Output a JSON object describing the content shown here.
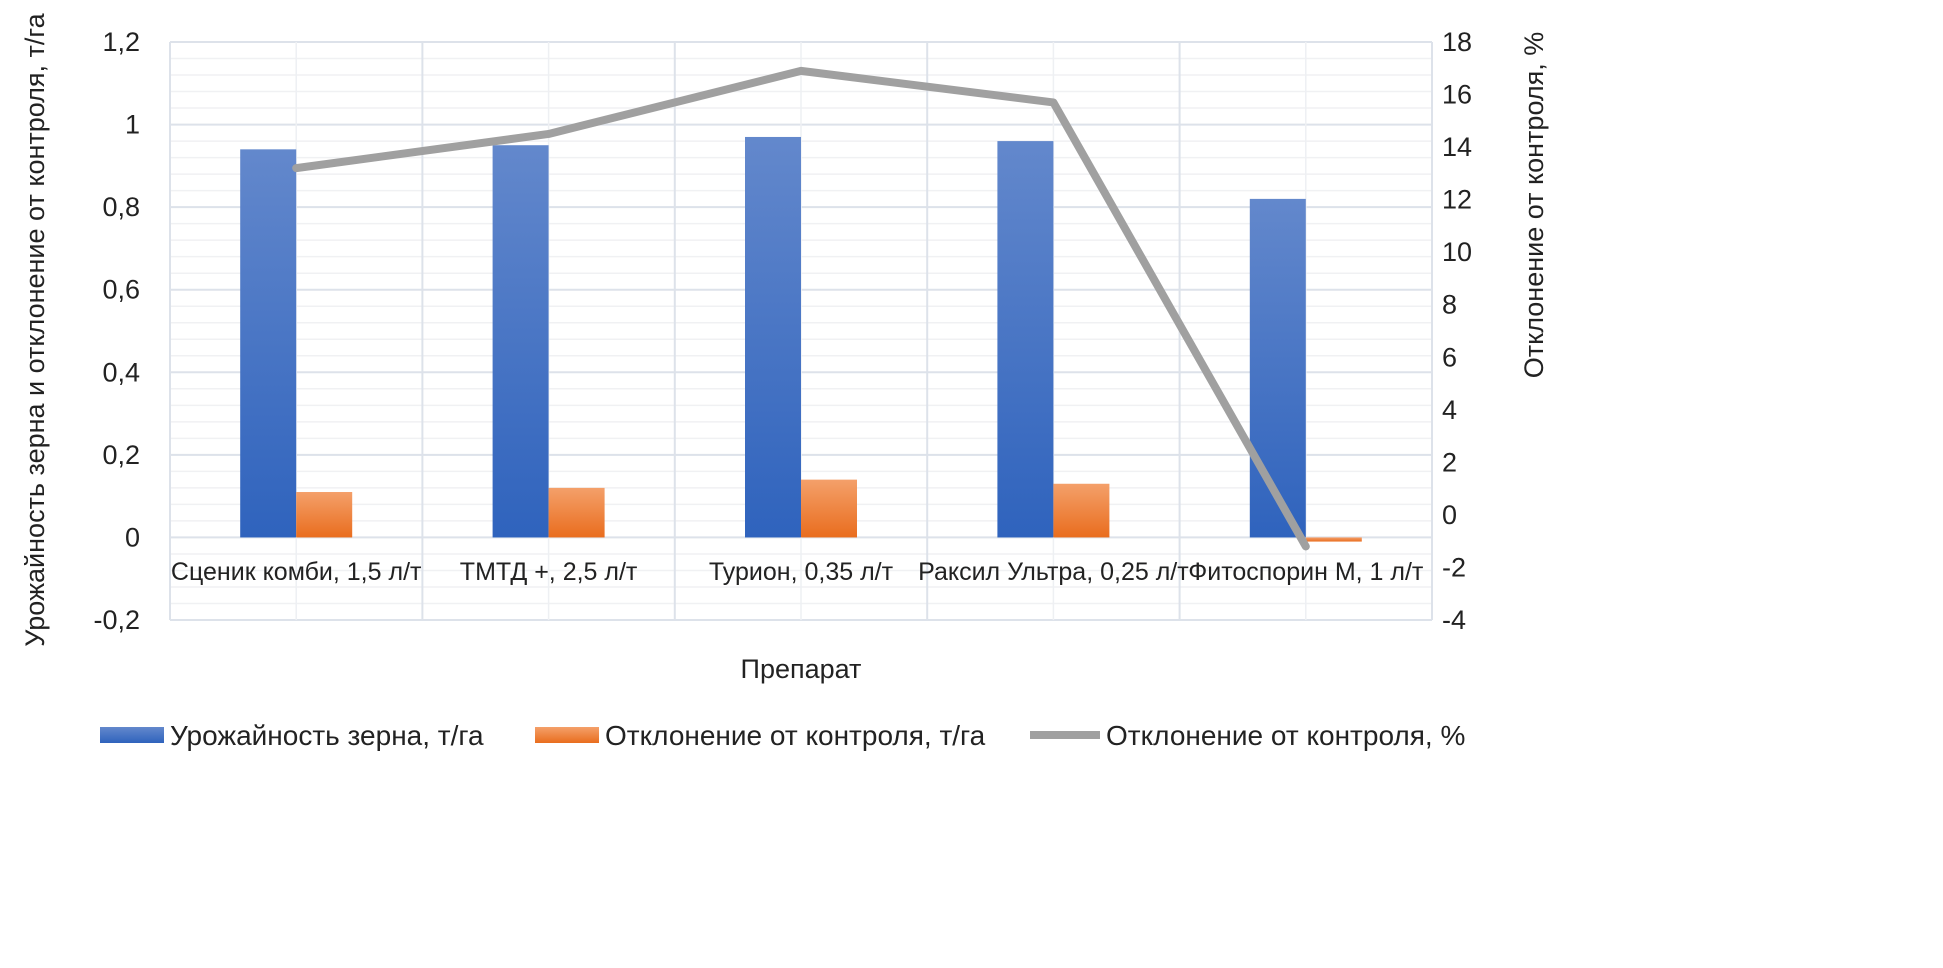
{
  "chart_data": {
    "type": "bar",
    "xlabel": "Препарат",
    "ylabel": "Урожайность зерна и отклонение от контроля, т/га",
    "ylabel_right": "Отклонение от контроля, %",
    "categories": [
      "Сценик комби, 1,5 л/т",
      "ТМТД +, 2,5 л/т",
      "Турион, 0,35 л/т",
      "Раксил Ультра, 0,25 л/т",
      "Фитоспорин М, 1 л/т"
    ],
    "ylim": [
      -0.2,
      1.2
    ],
    "yticks": [
      "-0,2",
      "0",
      "0,2",
      "0,4",
      "0,6",
      "0,8",
      "1",
      "1,2"
    ],
    "ylim_right": [
      -4,
      18
    ],
    "yticks_right": [
      "-4",
      "-2",
      "0",
      "2",
      "4",
      "6",
      "8",
      "10",
      "12",
      "14",
      "16",
      "18"
    ],
    "grid": true,
    "legend_position": "bottom",
    "series": [
      {
        "name": "Урожайность зерна, т/га",
        "type": "bar",
        "axis": "left",
        "color": "#4472C4",
        "values": [
          0.94,
          0.95,
          0.97,
          0.96,
          0.82
        ]
      },
      {
        "name": "Отклонение от контроля, т/га",
        "type": "bar",
        "axis": "left",
        "color": "#ED7D31",
        "values": [
          0.11,
          0.12,
          0.14,
          0.13,
          -0.01
        ]
      },
      {
        "name": "Отклонение от контроля, %",
        "type": "line",
        "axis": "right",
        "color": "#A5A5A5",
        "values": [
          13.2,
          14.5,
          16.9,
          15.7,
          -1.2
        ]
      }
    ]
  }
}
